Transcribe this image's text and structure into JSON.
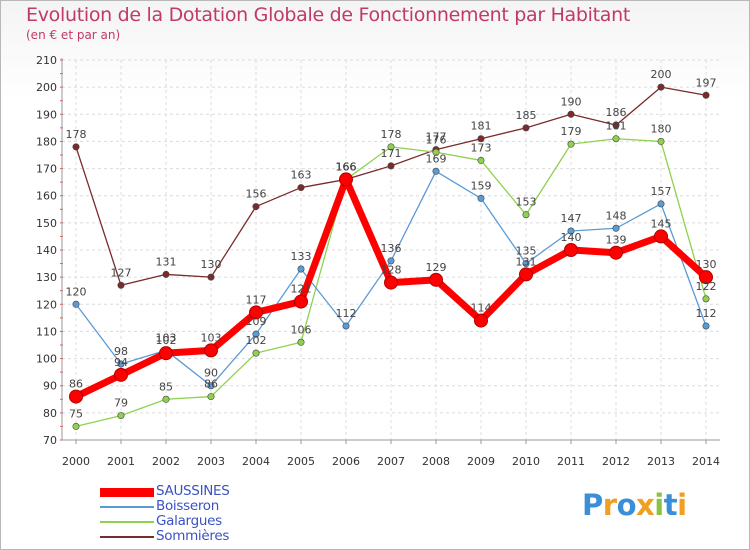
{
  "title": "Evolution de la Dotation Globale de Fonctionnement par Habitant",
  "subtitle": "(en € et par an)",
  "logo_text": "Proxiti",
  "chart_data": {
    "type": "line",
    "x": [
      2000,
      2001,
      2002,
      2003,
      2004,
      2005,
      2006,
      2007,
      2008,
      2009,
      2010,
      2011,
      2012,
      2013,
      2014
    ],
    "ylim": [
      70,
      210
    ],
    "yticks": [
      70,
      80,
      90,
      100,
      110,
      120,
      130,
      140,
      150,
      160,
      170,
      180,
      190,
      200,
      210
    ],
    "grid": true,
    "legend_placement": "bottom-left",
    "series": [
      {
        "name": "SAUSSINES",
        "color": "#ff0000",
        "values": [
          86,
          94,
          102,
          103,
          117,
          121,
          166,
          128,
          129,
          114,
          131,
          140,
          139,
          145,
          130
        ]
      },
      {
        "name": "Boisseron",
        "color": "#5b9bd5",
        "values": [
          120,
          98,
          103,
          90,
          109,
          133,
          112,
          136,
          169,
          159,
          135,
          147,
          148,
          157,
          112
        ]
      },
      {
        "name": "Galargues",
        "color": "#8fd14f",
        "values": [
          75,
          79,
          85,
          86,
          102,
          106,
          166,
          178,
          176,
          173,
          153,
          179,
          181,
          180,
          122
        ]
      },
      {
        "name": "Sommières",
        "color": "#7b2b2b",
        "values": [
          178,
          127,
          131,
          130,
          156,
          163,
          166,
          171,
          177,
          181,
          185,
          190,
          186,
          200,
          197
        ]
      }
    ]
  }
}
